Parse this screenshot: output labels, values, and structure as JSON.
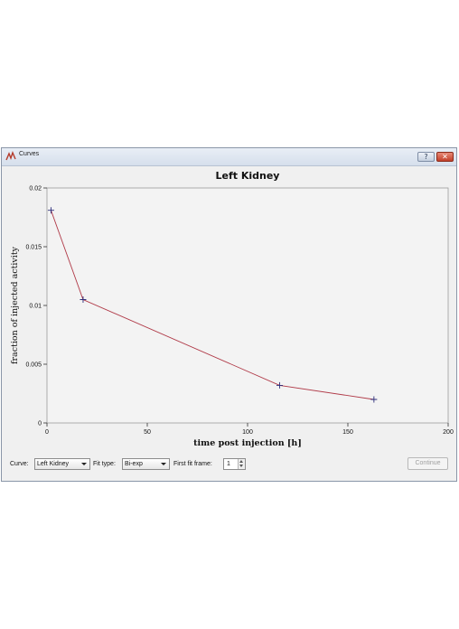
{
  "window": {
    "title": "Curves",
    "help_symbol": "?",
    "close_symbol": "✕",
    "app_icon": "curve-app-icon"
  },
  "chart_data": {
    "type": "line",
    "title": "Left Kidney",
    "xlabel": "time post injection [h]",
    "ylabel": "fraction of injected activity",
    "xlim": [
      0,
      200
    ],
    "ylim": [
      0,
      0.02
    ],
    "xticks": [
      0,
      50,
      100,
      150,
      200
    ],
    "xtick_labels": [
      "0",
      "50",
      "100",
      "150",
      "200"
    ],
    "yticks": [
      0,
      0.005,
      0.01,
      0.015,
      0.02
    ],
    "ytick_labels": [
      "0",
      "0.005",
      "0.01",
      "0.015",
      "0.02"
    ],
    "grid": false,
    "series": [
      {
        "x": [
          2,
          18,
          116,
          163
        ],
        "y": [
          0.0181,
          0.0105,
          0.0032,
          0.002
        ],
        "line_color": "#b03a48",
        "marker": "plus",
        "marker_color": "#2d2e7a"
      }
    ]
  },
  "controls": {
    "curve_label": "Curve:",
    "curve_value": "Left Kidney",
    "fit_type_label": "Fit type:",
    "fit_type_value": "Bi-exp",
    "first_fit_frame_label": "First fit frame:",
    "first_fit_frame_value": "1",
    "continue_label": "Continue"
  }
}
